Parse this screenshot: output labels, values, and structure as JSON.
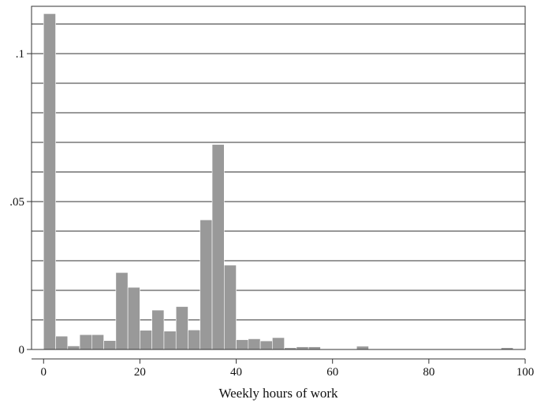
{
  "chart_data": {
    "type": "bar",
    "title": "",
    "xlabel": "Weekly hours of work",
    "ylabel": "",
    "xlim": [
      -2.5,
      100
    ],
    "ylim": [
      0,
      0.116
    ],
    "bin_width": 2.5,
    "x_ticks": [
      0,
      20,
      40,
      60,
      80,
      100
    ],
    "x_tick_labels": [
      "0",
      "20",
      "40",
      "60",
      "80",
      "100"
    ],
    "y_ticks": [
      0,
      0.05,
      0.1
    ],
    "y_tick_labels": [
      "0",
      ".05",
      ".1"
    ],
    "grid": "horizontal",
    "gridline_values": [
      0.01,
      0.02,
      0.03,
      0.04,
      0.05,
      0.06,
      0.07,
      0.08,
      0.09,
      0.1,
      0.11
    ],
    "bar_color": "#999999",
    "bins": [
      {
        "x0": 0.0,
        "value": 0.1135
      },
      {
        "x0": 2.5,
        "value": 0.0045
      },
      {
        "x0": 5.0,
        "value": 0.0012
      },
      {
        "x0": 7.5,
        "value": 0.005
      },
      {
        "x0": 10.0,
        "value": 0.005
      },
      {
        "x0": 12.5,
        "value": 0.003
      },
      {
        "x0": 15.0,
        "value": 0.026
      },
      {
        "x0": 17.5,
        "value": 0.021
      },
      {
        "x0": 20.0,
        "value": 0.0065
      },
      {
        "x0": 22.5,
        "value": 0.0133
      },
      {
        "x0": 25.0,
        "value": 0.0062
      },
      {
        "x0": 27.5,
        "value": 0.0145
      },
      {
        "x0": 30.0,
        "value": 0.0066
      },
      {
        "x0": 32.5,
        "value": 0.0438
      },
      {
        "x0": 35.0,
        "value": 0.0693
      },
      {
        "x0": 37.5,
        "value": 0.0285
      },
      {
        "x0": 40.0,
        "value": 0.0033
      },
      {
        "x0": 42.5,
        "value": 0.0036
      },
      {
        "x0": 45.0,
        "value": 0.0029
      },
      {
        "x0": 47.5,
        "value": 0.004
      },
      {
        "x0": 50.0,
        "value": 0.0006
      },
      {
        "x0": 52.5,
        "value": 0.0009
      },
      {
        "x0": 55.0,
        "value": 0.0009
      },
      {
        "x0": 57.5,
        "value": 0.0002
      },
      {
        "x0": 60.0,
        "value": 0.0002
      },
      {
        "x0": 65.0,
        "value": 0.0011
      },
      {
        "x0": 95.0,
        "value": 0.0006
      }
    ]
  }
}
